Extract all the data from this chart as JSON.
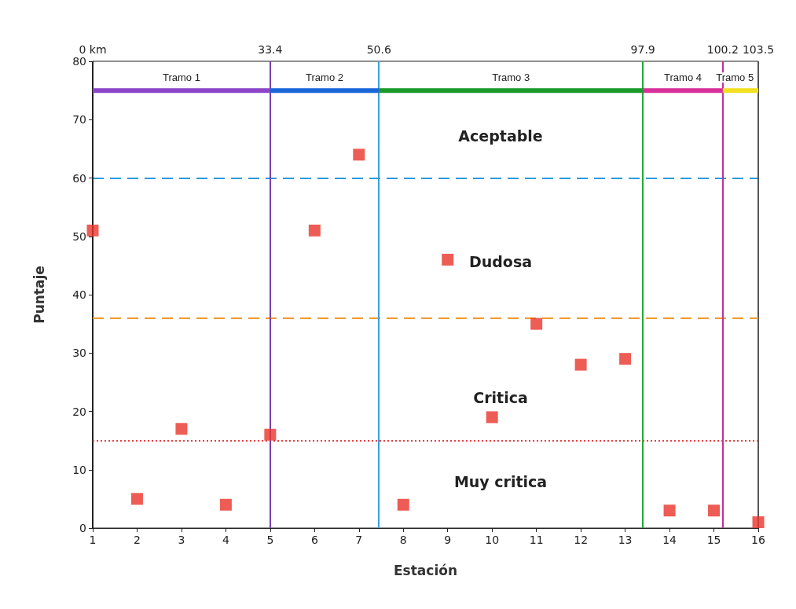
{
  "chart_data": {
    "type": "scatter",
    "xlabel": "Estación",
    "ylabel": "Puntaje",
    "x": [
      1,
      2,
      3,
      4,
      5,
      6,
      7,
      8,
      9,
      10,
      11,
      12,
      13,
      14,
      15,
      16
    ],
    "series": [
      {
        "color": "#e8352a",
        "marker": "square",
        "values": [
          51,
          5,
          17,
          4,
          16,
          51,
          64,
          4,
          46,
          19,
          35,
          28,
          29,
          3,
          3,
          1
        ]
      },
      {
        "type": "line",
        "name": "Tramo 1",
        "color": "#8a44c8",
        "marker": "none",
        "x": [
          1,
          5
        ],
        "values": [
          75,
          75
        ]
      },
      {
        "type": "line",
        "name": "Tramo 2",
        "color": "#1a66d8",
        "marker": "none",
        "x": [
          5,
          7.45
        ],
        "values": [
          75,
          75
        ]
      },
      {
        "type": "line",
        "name": "Tramo 3",
        "color": "#1a9a2a",
        "marker": "none",
        "x": [
          7.45,
          13.4
        ],
        "values": [
          75,
          75
        ]
      },
      {
        "type": "line",
        "name": "Tramo 4",
        "color": "#d8309a",
        "marker": "none",
        "x": [
          13.4,
          15.2
        ],
        "values": [
          75,
          75
        ]
      },
      {
        "type": "line",
        "name": "Tramo 5",
        "color": "#f0e020",
        "marker": "none",
        "x": [
          15.2,
          16
        ],
        "values": [
          75,
          75
        ]
      }
    ],
    "xlim": [
      1,
      16
    ],
    "xticks": [
      1,
      2,
      3,
      4,
      5,
      6,
      7,
      8,
      9,
      10,
      11,
      12,
      13,
      14,
      15,
      16
    ],
    "ylim": [
      0,
      80
    ],
    "yticks": [
      0,
      10,
      20,
      30,
      40,
      50,
      60,
      70,
      80
    ],
    "ref_lines": [
      {
        "axis": "y",
        "value": 60,
        "color": "#2a9ad8",
        "line_style": "dashed"
      },
      {
        "axis": "x",
        "value": 1,
        "color": "#222222",
        "line_style": "solid"
      },
      {
        "axis": "x",
        "value": 16,
        "color": "#555555",
        "line_style": "solid"
      },
      {
        "axis": "y",
        "value": 36,
        "color": "#f09a30",
        "line_style": "dashed"
      },
      {
        "axis": "y",
        "value": 15,
        "color": "#e84040",
        "line_style": "dotted"
      },
      {
        "axis": "x",
        "value": 5,
        "color": "#7a3fb0",
        "line_style": "solid"
      },
      {
        "axis": "x",
        "value": 7.45,
        "color": "#3aa0e0",
        "line_style": "solid"
      },
      {
        "axis": "x",
        "value": 13.4,
        "color": "#22aa33",
        "line_style": "solid"
      },
      {
        "axis": "x",
        "value": 15.2,
        "color": "#c0309a",
        "line_style": "solid"
      }
    ],
    "annotations": [
      "Aceptable",
      "Dudosa",
      "Critica",
      "Muy critica",
      {
        "text": "0 km",
        "x": 1,
        "y": 80
      },
      {
        "text": "33.4",
        "x": 5,
        "y": 80
      },
      {
        "text": "50.6",
        "x": 7.45,
        "y": 80
      },
      {
        "text": "97.9",
        "x": 13.4,
        "y": 80
      },
      {
        "text": "100.2",
        "x": 15.2,
        "y": 80
      },
      {
        "text": "103.5",
        "x": 16,
        "y": 80
      }
    ],
    "grid": false,
    "legend": false
  }
}
